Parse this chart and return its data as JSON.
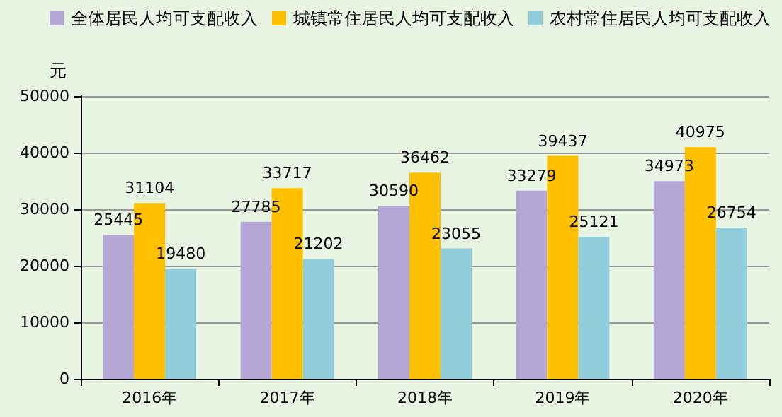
{
  "chart_data": {
    "type": "bar",
    "ylabel": "元",
    "categories": [
      "2016年",
      "2017年",
      "2018年",
      "2019年",
      "2020年"
    ],
    "series": [
      {
        "name": "全体居民人均可支配收入",
        "color": "#b4a7d6",
        "values": [
          25445,
          27785,
          30590,
          33279,
          34973
        ]
      },
      {
        "name": "城镇常住居民人均可支配收入",
        "color": "#ffc000",
        "values": [
          31104,
          33717,
          36462,
          39437,
          40975
        ]
      },
      {
        "name": "农村常住居民人均可支配收入",
        "color": "#92cddc",
        "values": [
          19480,
          21202,
          23055,
          25121,
          26754
        ]
      }
    ],
    "ylim": [
      0,
      50000
    ],
    "yticks": [
      0,
      10000,
      20000,
      30000,
      40000,
      50000
    ],
    "grid": "y",
    "legend": "top left",
    "data_labels": true
  }
}
